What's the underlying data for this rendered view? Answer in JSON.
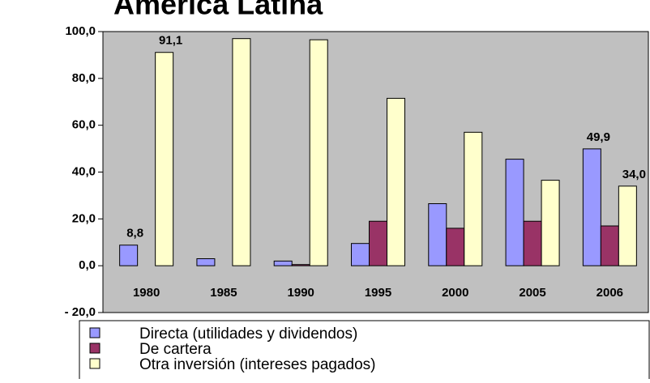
{
  "chart_data": {
    "type": "bar",
    "title": "América Latina",
    "categories": [
      "1980",
      "1985",
      "1990",
      "1995",
      "2000",
      "2005",
      "2006"
    ],
    "series": [
      {
        "name": "Directa (utilidades y dividendos)",
        "color": "#9999ff",
        "values": [
          8.8,
          3,
          2,
          9.5,
          26.5,
          45.5,
          49.9
        ],
        "value_labels": [
          "8,8",
          null,
          null,
          null,
          null,
          null,
          "49,9"
        ]
      },
      {
        "name": "De cartera",
        "color": "#993366",
        "values": [
          0,
          0,
          0.5,
          19,
          16,
          19,
          17
        ]
      },
      {
        "name": "Otra inversión (intereses pagados)",
        "color": "#ffffcc",
        "values": [
          91.1,
          97,
          96.5,
          71.5,
          57,
          36.5,
          34.0
        ],
        "value_labels": [
          "91,1",
          null,
          null,
          null,
          null,
          null,
          "34,0"
        ]
      }
    ],
    "ylim": [
      -20,
      100
    ],
    "yticks": [
      {
        "value": -20,
        "label": "- 20,0"
      },
      {
        "value": 0,
        "label": "0,0"
      },
      {
        "value": 20,
        "label": "20,0"
      },
      {
        "value": 40,
        "label": "40,0"
      },
      {
        "value": 60,
        "label": "60,0"
      },
      {
        "value": 80,
        "label": "80,0"
      },
      {
        "value": 100,
        "label": "100,0"
      }
    ],
    "grid": false
  }
}
